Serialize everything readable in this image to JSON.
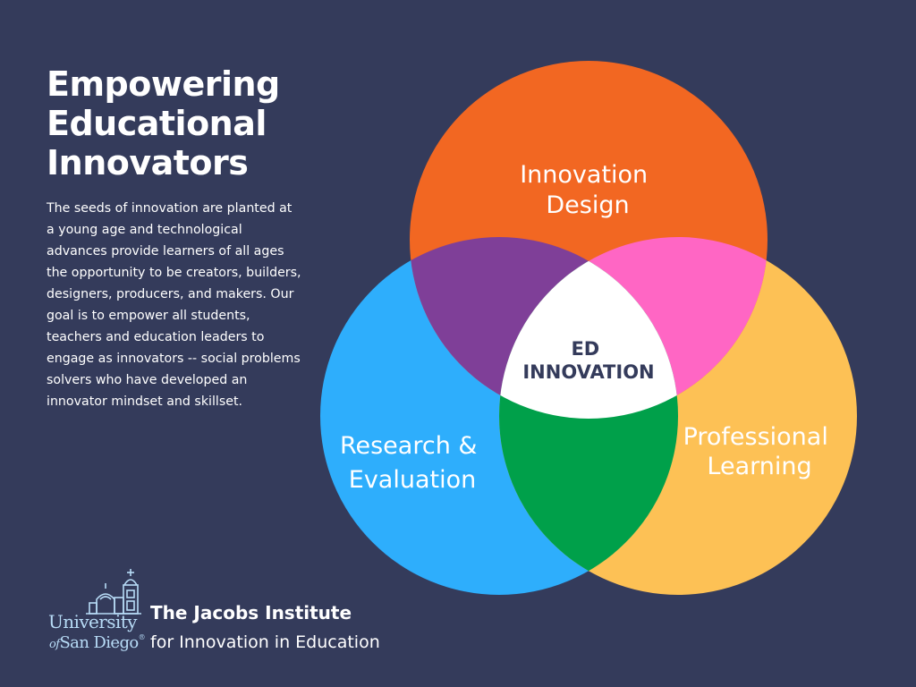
{
  "headline": {
    "line1": "Empowering",
    "line2": "Educational",
    "line3": "Innovators"
  },
  "body_text": "The seeds of innovation are planted at a young age and technological advances provide learners of all ages the opportunity to be creators, builders, designers, producers, and makers. Our goal is to empower all students, teachers and education leaders to engage as innovators -- social problems solvers who have developed an innovator mindset and skillset.",
  "venn": {
    "top": {
      "line1": "Innovation",
      "line2": "Design",
      "color": "#f26722"
    },
    "left": {
      "line1": "Research &",
      "line2": "Evaluation",
      "color": "#2eaefc"
    },
    "right": {
      "line1": "Professional",
      "line2": "Learning",
      "color": "#fdc155"
    },
    "overlap_top_left_color": "#7f3f98",
    "overlap_top_right_color": "#ff66c4",
    "overlap_left_right_color": "#00a04a",
    "center": {
      "line1": "ED",
      "line2": "INNOVATION",
      "color": "#ffffff"
    }
  },
  "logo": {
    "line1": "University",
    "of": "of",
    "line2": "San Diego",
    "reg": "®"
  },
  "org": {
    "name": "The Jacobs Institute",
    "sub": "for Innovation in Education"
  },
  "background_color": "#343b5b"
}
